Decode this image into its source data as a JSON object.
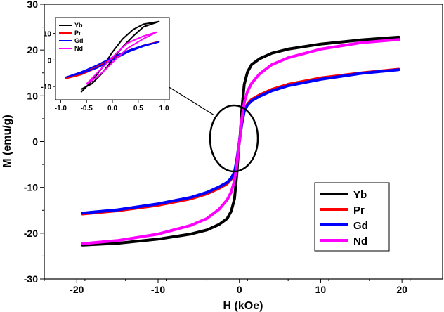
{
  "chart_data": [
    {
      "type": "line",
      "title": "",
      "xlabel": "H (kOe)",
      "ylabel": "M (emu/g)",
      "xlim": [
        -24,
        25
      ],
      "ylim": [
        -30,
        30
      ],
      "xticks": [
        -20,
        -10,
        0,
        10,
        20
      ],
      "yticks": [
        -30,
        -20,
        -10,
        0,
        10,
        20,
        30
      ],
      "legend": {
        "placement": "bottom-right"
      },
      "grid": false,
      "series": [
        {
          "name": "Yb",
          "color": "#000000",
          "x": [
            -19.3,
            -15,
            -10,
            -6,
            -4,
            -2.5,
            -1.5,
            -1.0,
            -0.6,
            -0.3,
            -0.1,
            0.1,
            0.3,
            0.6,
            1.0,
            1.5,
            2.5,
            4,
            6,
            10,
            15,
            19.6
          ],
          "y": [
            -22.6,
            -22.2,
            -21.3,
            -20.2,
            -19.3,
            -18.1,
            -16.8,
            -15.2,
            -12.5,
            -7.0,
            -1.5,
            1.5,
            7.0,
            12.5,
            15.2,
            16.8,
            18.1,
            19.3,
            20.2,
            21.3,
            22.2,
            22.8
          ]
        },
        {
          "name": "Pr",
          "color": "#ff0000",
          "x": [
            -19.3,
            -15,
            -10,
            -6,
            -4,
            -2.5,
            -1.5,
            -1.0,
            -0.6,
            -0.3,
            0.0,
            0.3,
            0.6,
            1.0,
            1.5,
            2.5,
            4,
            6,
            10,
            15,
            19.6
          ],
          "y": [
            -15.8,
            -15.1,
            -13.9,
            -12.5,
            -11.4,
            -10.2,
            -9.2,
            -8.2,
            -6.8,
            -4.0,
            0.0,
            4.0,
            6.8,
            8.2,
            9.2,
            10.2,
            11.4,
            12.5,
            13.9,
            15.0,
            15.8
          ]
        },
        {
          "name": "Gd",
          "color": "#0000ff",
          "x": [
            -19.3,
            -15,
            -10,
            -6,
            -4,
            -2.5,
            -1.5,
            -1.0,
            -0.6,
            -0.3,
            0.0,
            0.3,
            0.6,
            1.0,
            1.5,
            2.5,
            4,
            6,
            10,
            15,
            19.6
          ],
          "y": [
            -15.6,
            -14.9,
            -13.6,
            -12.2,
            -11.1,
            -9.9,
            -8.9,
            -8.0,
            -6.6,
            -3.8,
            0.0,
            3.8,
            6.6,
            8.0,
            8.9,
            9.9,
            11.1,
            12.2,
            13.6,
            14.9,
            15.7
          ]
        },
        {
          "name": "Nd",
          "color": "#ff00ff",
          "x": [
            -19.3,
            -15,
            -10,
            -6,
            -4,
            -2.5,
            -1.5,
            -1.0,
            -0.6,
            -0.3,
            -0.1,
            0.1,
            0.3,
            0.6,
            1.0,
            1.5,
            2.5,
            4,
            6,
            10,
            15,
            19.6
          ],
          "y": [
            -22.3,
            -21.6,
            -20.2,
            -18.3,
            -16.8,
            -14.8,
            -12.7,
            -11.0,
            -8.5,
            -5.0,
            -1.0,
            1.0,
            5.0,
            8.5,
            11.0,
            12.7,
            14.8,
            16.8,
            18.3,
            20.2,
            21.6,
            22.3
          ]
        }
      ],
      "annotations": [
        "ellipse around origin",
        "arrow pointing to inset"
      ]
    },
    {
      "type": "line",
      "title": "",
      "xlim": [
        -1.1,
        1.1
      ],
      "ylim": [
        -15,
        16
      ],
      "xticks": [
        -1.0,
        -0.5,
        0.0,
        0.5,
        1.0
      ],
      "xtick_labels": [
        "-1.0",
        "-0.5",
        "0.0",
        "0.5",
        "1.0"
      ],
      "yticks": [
        -10,
        0,
        10
      ],
      "legend": {
        "placement": "top-left"
      },
      "series": [
        {
          "name": "Yb",
          "color": "#000000",
          "x": [
            -0.6,
            -0.4,
            -0.2,
            0.0,
            0.2,
            0.4,
            0.6,
            0.9,
            0.6,
            0.4,
            0.2,
            0.0,
            -0.2,
            -0.4,
            -0.6
          ],
          "y": [
            -12,
            -8,
            -3,
            3,
            8,
            11.5,
            13.5,
            14.5,
            12.5,
            9,
            5,
            0,
            -5,
            -9,
            -11
          ]
        },
        {
          "name": "Pr",
          "color": "#ff0000",
          "x": [
            -0.9,
            -0.6,
            -0.3,
            0.0,
            0.3,
            0.6,
            0.9,
            0.6,
            0.3,
            0.0,
            -0.3,
            -0.6,
            -0.9
          ],
          "y": [
            -7,
            -5,
            -2.5,
            0.5,
            3.5,
            5.5,
            7,
            5.5,
            3,
            0,
            -3,
            -5.5,
            -7
          ]
        },
        {
          "name": "Gd",
          "color": "#0000ff",
          "x": [
            -0.9,
            -0.6,
            -0.3,
            0.0,
            0.3,
            0.6,
            0.9,
            0.6,
            0.3,
            0.0,
            -0.3,
            -0.6,
            -0.9
          ],
          "y": [
            -6.5,
            -4.5,
            -2,
            1,
            3.5,
            5.5,
            6.8,
            5.2,
            3,
            0,
            -3,
            -5,
            -6.5
          ]
        },
        {
          "name": "Nd",
          "color": "#ff00ff",
          "x": [
            -0.5,
            -0.3,
            -0.1,
            0.1,
            0.3,
            0.6,
            0.85,
            0.6,
            0.3,
            0.1,
            -0.1,
            -0.3,
            -0.5
          ],
          "y": [
            -9,
            -5,
            -1,
            3,
            6.5,
            9,
            10.5,
            8,
            4.5,
            1,
            -3,
            -6.5,
            -9
          ]
        }
      ]
    }
  ]
}
